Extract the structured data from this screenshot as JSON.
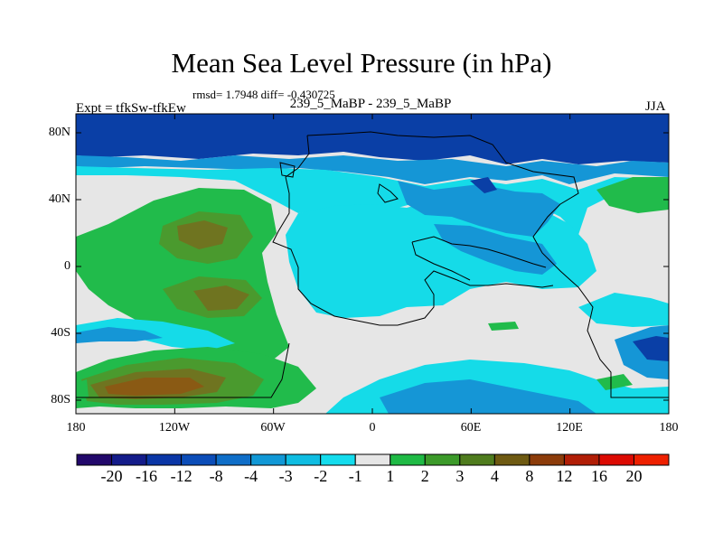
{
  "header": {
    "title": "Mean Sea Level Pressure (in hPa)",
    "stats": "rmsd= 1.7948 diff= -0.430725",
    "expt": "Expt = tfkSw-tfkEw",
    "cases": "239_5_MaBP - 239_5_MaBP",
    "season": "JJA"
  },
  "map": {
    "y_axis": {
      "labels": [
        "80N",
        "40N",
        "0",
        "40S",
        "80S"
      ]
    },
    "x_axis": {
      "labels": [
        "180",
        "120W",
        "60W",
        "0",
        "60E",
        "120E",
        "180"
      ]
    }
  },
  "colorbar": {
    "labels": [
      "-20",
      "-16",
      "-12",
      "-8",
      "-4",
      "-3",
      "-2",
      "-1",
      "1",
      "2",
      "3",
      "4",
      "8",
      "12",
      "16",
      "20"
    ],
    "colors": [
      "#22086b",
      "#141c8a",
      "#0a36a6",
      "#0c4db8",
      "#0f6ec8",
      "#1198d6",
      "#0fbde2",
      "#14dced",
      "#e6e6e6",
      "#1fba45",
      "#3c9a2a",
      "#4f7c1e",
      "#6e5a12",
      "#8c3c0a",
      "#b11e06",
      "#dc0a02",
      "#ee2000"
    ]
  },
  "colors": {
    "cold_deep": "#0a3fa6",
    "cold_mid": "#1596d6",
    "cold_light": "#15dbe8",
    "neutral": "#e6e6e6",
    "warm_1": "#21bb4b",
    "warm_2": "#4a9a2e",
    "warm_3": "#6f7420",
    "warm_4": "#8a5a14"
  }
}
